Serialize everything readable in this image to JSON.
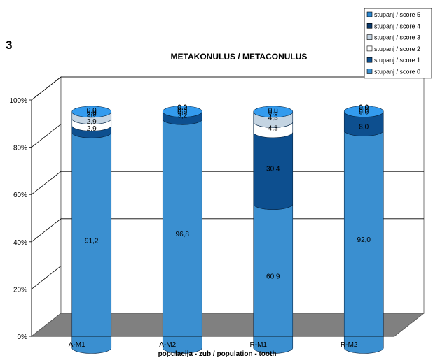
{
  "figure_number": "3",
  "chart_data": {
    "type": "bar",
    "stacked": true,
    "three_d": true,
    "title": "METAKONULUS / METACONULUS",
    "xlabel": "populacija - zub / population - tooth",
    "ylabel": "",
    "ylim": [
      0,
      100
    ],
    "yticks": [
      "0%",
      "20%",
      "40%",
      "60%",
      "80%",
      "100%"
    ],
    "grid": true,
    "legend_position": "top-right",
    "categories": [
      "A-M1",
      "A-M2",
      "R-M1",
      "R-M2"
    ],
    "series": [
      {
        "name": "stupanj / score 0",
        "color": "#3a8fd0",
        "values": [
          91.2,
          96.8,
          60.9,
          92.0
        ]
      },
      {
        "name": "stupanj / score 1",
        "color": "#0d4f8f",
        "values": [
          2.9,
          3.2,
          30.4,
          8.0
        ]
      },
      {
        "name": "stupanj / score 2",
        "color": "#ffffff",
        "values": [
          2.9,
          0.0,
          4.3,
          0.0
        ]
      },
      {
        "name": "stupanj / score 3",
        "color": "#c4d4e2",
        "values": [
          2.9,
          0.0,
          4.3,
          0.0
        ]
      },
      {
        "name": "stupanj / score 4",
        "color": "#0b3a6b",
        "values": [
          0.0,
          0.0,
          0.0,
          0.0
        ]
      },
      {
        "name": "stupanj / score 5",
        "color": "#2c87cf",
        "values": [
          0.0,
          0.0,
          0.0,
          0.0
        ]
      }
    ],
    "data_labels": [
      [
        "91,2",
        "2,9",
        "2,9",
        "2,9",
        "0,0",
        "0,0"
      ],
      [
        "96,8",
        "3,2",
        "0,0",
        "0,0",
        "0,0",
        "0,0"
      ],
      [
        "60,9",
        "30,4",
        "4,3",
        "4,3",
        "0,0",
        "0,0"
      ],
      [
        "92,0",
        "8,0",
        "0,0",
        "0,0",
        "0,0",
        "0,0"
      ]
    ]
  }
}
